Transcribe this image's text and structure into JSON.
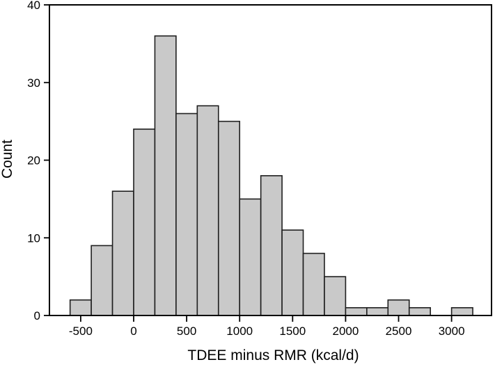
{
  "chart_data": {
    "type": "bar",
    "histogram": true,
    "title": "",
    "xlabel": "TDEE minus RMR (kcal/d)",
    "ylabel": "Count",
    "bin_width": 200,
    "bin_edges": [
      -600,
      -400,
      -200,
      0,
      200,
      400,
      600,
      800,
      1000,
      1200,
      1400,
      1600,
      1800,
      2000,
      2200,
      2400,
      2600,
      2800,
      3000,
      3200
    ],
    "counts": [
      2,
      9,
      16,
      24,
      36,
      26,
      27,
      25,
      15,
      18,
      11,
      8,
      5,
      1,
      1,
      2,
      1,
      0,
      1
    ],
    "xlim": [
      -795,
      3377
    ],
    "ylim": [
      0,
      40
    ],
    "x_ticks": [
      -500,
      0,
      500,
      1000,
      1500,
      2000,
      2500,
      3000
    ],
    "y_ticks": [
      0,
      10,
      20,
      30,
      40
    ],
    "grid": false,
    "legend": "none",
    "frame": "full-box",
    "colors": {
      "bar_fill": "#c9c9c9",
      "bar_stroke": "#1f1f1f",
      "axis": "#000000",
      "text": "#000000",
      "background": "#ffffff"
    }
  }
}
